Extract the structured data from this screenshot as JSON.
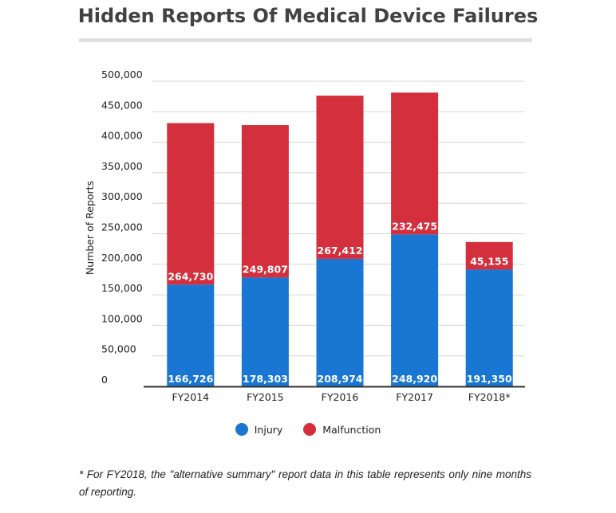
{
  "chart_data": {
    "type": "bar",
    "stacked": true,
    "title": "Hidden Reports Of Medical Device Failures",
    "xlabel": "",
    "ylabel": "Number of Reports",
    "categories": [
      "FY2014",
      "FY2015",
      "FY2016",
      "FY2017",
      "FY2018*"
    ],
    "series": [
      {
        "name": "Injury",
        "color": "#1976d2",
        "values": [
          166726,
          178303,
          208974,
          248920,
          191350
        ],
        "labels": [
          "166,726",
          "178,303",
          "208,974",
          "248,920",
          "191,350"
        ]
      },
      {
        "name": "Malfunction",
        "color": "#d32f3c",
        "values": [
          264730,
          249807,
          267412,
          232475,
          45155
        ],
        "labels": [
          "264,730",
          "249,807",
          "267,412",
          "232,475",
          "45,155"
        ]
      }
    ],
    "ylim": [
      0,
      500000
    ],
    "yticks": [
      0,
      50000,
      100000,
      150000,
      200000,
      250000,
      300000,
      350000,
      400000,
      450000,
      500000
    ],
    "ytick_labels": [
      "0",
      "50,000",
      "100,000",
      "150,000",
      "200,000",
      "250,000",
      "300,000",
      "350,000",
      "400,000",
      "450,000",
      "500,000"
    ],
    "grid": true,
    "legend": "bottom"
  },
  "footnote": "* For FY2018, the \"alternative summary\" report data in this table represents only nine months of reporting."
}
